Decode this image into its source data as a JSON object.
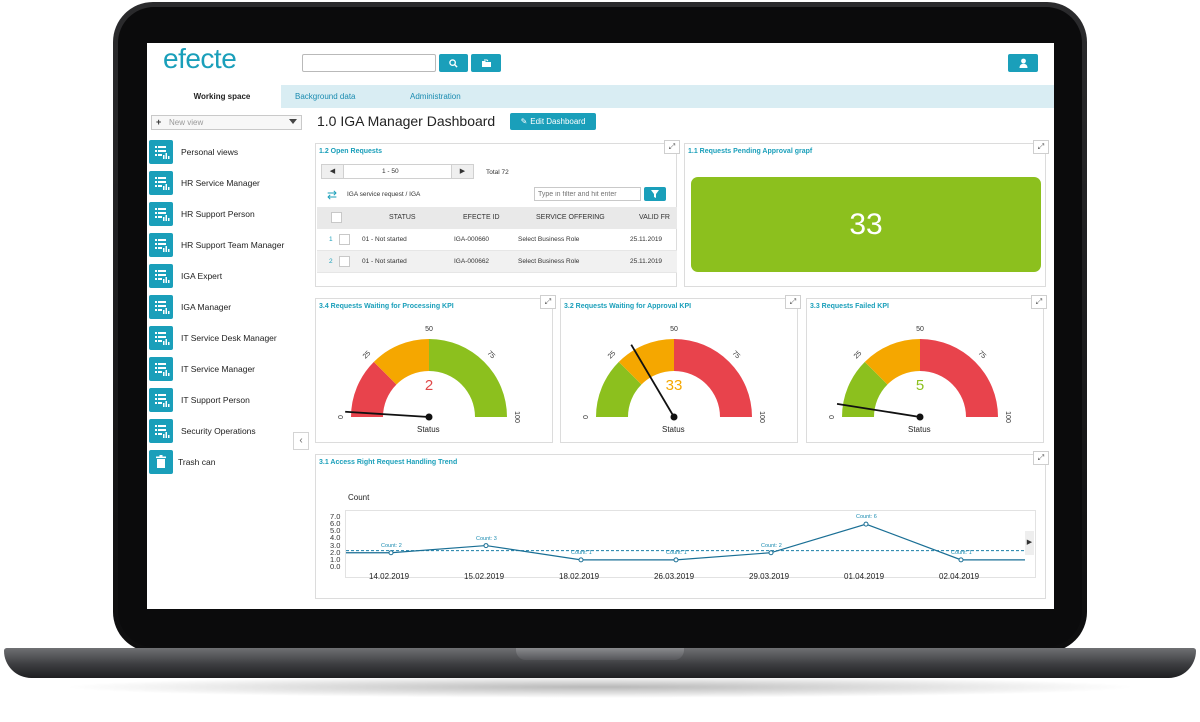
{
  "app": {
    "logo": "efecte"
  },
  "tabs": [
    {
      "label": "Working space",
      "active": true
    },
    {
      "label": "Background data",
      "active": false
    },
    {
      "label": "Administration",
      "active": false
    }
  ],
  "sidebar": {
    "new_view": "New view",
    "items": [
      {
        "label": "Personal views"
      },
      {
        "label": "HR Service Manager"
      },
      {
        "label": "HR Support Person"
      },
      {
        "label": "HR Support Team Manager"
      },
      {
        "label": "IGA Expert"
      },
      {
        "label": "IGA Manager"
      },
      {
        "label": "IT Service Desk Manager"
      },
      {
        "label": "IT Service Manager"
      },
      {
        "label": "IT Support Person"
      },
      {
        "label": "Security Operations"
      }
    ],
    "trash": "Trash can"
  },
  "page": {
    "title": "1.0 IGA Manager Dashboard",
    "edit_label": "Edit Dashboard"
  },
  "open_requests": {
    "title": "1.2 Open Requests",
    "range": "1 - 50",
    "total": "Total 72",
    "context": "IGA service request / IGA",
    "filter_placeholder": "Type in filter and hit enter",
    "columns": [
      "STATUS",
      "EFECTE ID",
      "SERVICE OFFERING",
      "VALID FR"
    ],
    "rows": [
      {
        "num": "1",
        "status": "01 - Not started",
        "id": "IGA-000660",
        "offering": "Select Business Role",
        "valid": "25.11.2019"
      },
      {
        "num": "2",
        "status": "01 - Not started",
        "id": "IGA-000662",
        "offering": "Select Business Role",
        "valid": "25.11.2019"
      }
    ]
  },
  "pending": {
    "title": "1.1 Requests Pending Approval grapf",
    "value": "33",
    "color": "#8cc01e"
  },
  "gauges": [
    {
      "title": "3.4 Requests Waiting for Processing KPI",
      "value": "2",
      "value_color": "#e04848",
      "status": "Status",
      "reading": 2,
      "max": 100,
      "bands": [
        "#e8434c",
        "#f5a700",
        "#8cc01e"
      ],
      "ticks": [
        "0",
        "25",
        "50",
        "75",
        "100"
      ]
    },
    {
      "title": "3.2 Requests Waiting for Approval KPI",
      "value": "33",
      "value_color": "#f5a700",
      "status": "Status",
      "reading": 33,
      "max": 100,
      "bands": [
        "#8cc01e",
        "#f5a700",
        "#e8434c"
      ],
      "ticks": [
        "0",
        "25",
        "50",
        "75",
        "100"
      ]
    },
    {
      "title": "3.3 Requests Failed KPI",
      "value": "5",
      "value_color": "#8cc01e",
      "status": "Status",
      "reading": 5,
      "max": 100,
      "bands": [
        "#8cc01e",
        "#f5a700",
        "#e8434c"
      ],
      "ticks": [
        "0",
        "25",
        "50",
        "75",
        "100"
      ]
    }
  ],
  "trend": {
    "title": "3.1 Access Right Request Handling Trend",
    "ylabel": "Count"
  },
  "chart_data": {
    "type": "line",
    "title": "3.1 Access Right Request Handling Trend",
    "ylabel": "Count",
    "ylim": [
      0,
      7
    ],
    "yticks": [
      "7.0",
      "6.0",
      "5.0",
      "4.0",
      "3.0",
      "2.0",
      "1.0",
      "0.0"
    ],
    "categories": [
      "14.02.2019",
      "15.02.2019",
      "18.02.2019",
      "26.03.2019",
      "29.03.2019",
      "01.04.2019",
      "02.04.2019"
    ],
    "series": [
      {
        "values": [
          2,
          3,
          1,
          1,
          2,
          6,
          1
        ],
        "labels": [
          "Count: 2",
          "Count: 3",
          "Count: 1",
          "Count: 1",
          "Count: 2",
          "Count: 6",
          "Count: 1"
        ]
      }
    ],
    "average": 2.29
  }
}
